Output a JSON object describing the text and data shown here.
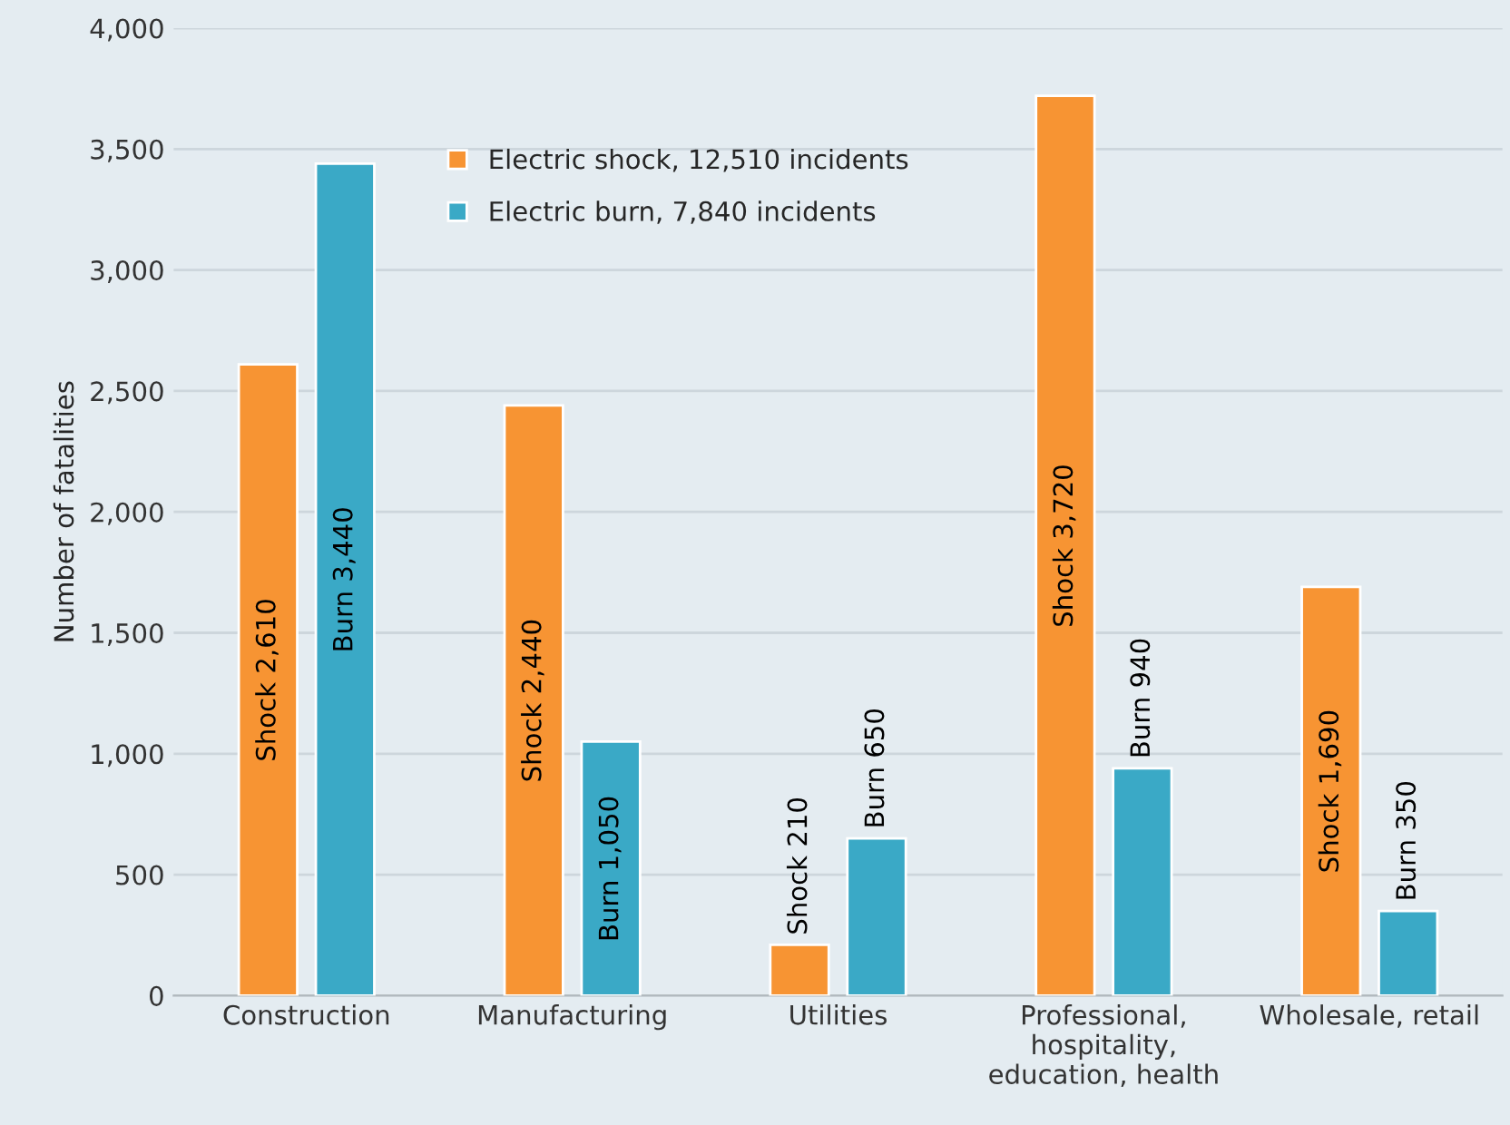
{
  "chart_data": {
    "type": "bar",
    "ylabel": "Number of fatalities",
    "categories": [
      "Construction",
      "Manufacturing",
      "Utilities",
      "Professional,\nhospitality,\neducation, health",
      "Wholesale, retail"
    ],
    "series": [
      {
        "name": "Electric shock, 12,510 incidents",
        "color": "#f79433",
        "values": [
          2610,
          2440,
          210,
          3720,
          1690
        ],
        "value_labels": [
          "Shock 2,610",
          "Shock 2,440",
          "Shock 210",
          "Shock 3,720",
          "Shock 1,690"
        ]
      },
      {
        "name": "Electric burn, 7,840 incidents",
        "color": "#3aa9c6",
        "values": [
          3440,
          1050,
          650,
          940,
          350
        ],
        "value_labels": [
          "Burn 3,440",
          "Burn 1,050",
          "Burn 650",
          "Burn 940",
          "Burn 350"
        ]
      }
    ],
    "ylim": [
      0,
      4000
    ],
    "yticks": [
      0,
      {
        "value": 500,
        "label": "500"
      },
      {
        "value": 1000,
        "label": "1,000"
      },
      {
        "value": 1500,
        "label": "1,500"
      },
      {
        "value": 2000,
        "label": "2,000"
      },
      {
        "value": 2500,
        "label": "2,500"
      },
      {
        "value": 3000,
        "label": "3,000"
      },
      {
        "value": 3500,
        "label": "3,500"
      },
      {
        "value": 4000,
        "label": "4,000"
      }
    ],
    "grid": "y",
    "legend": "top"
  }
}
